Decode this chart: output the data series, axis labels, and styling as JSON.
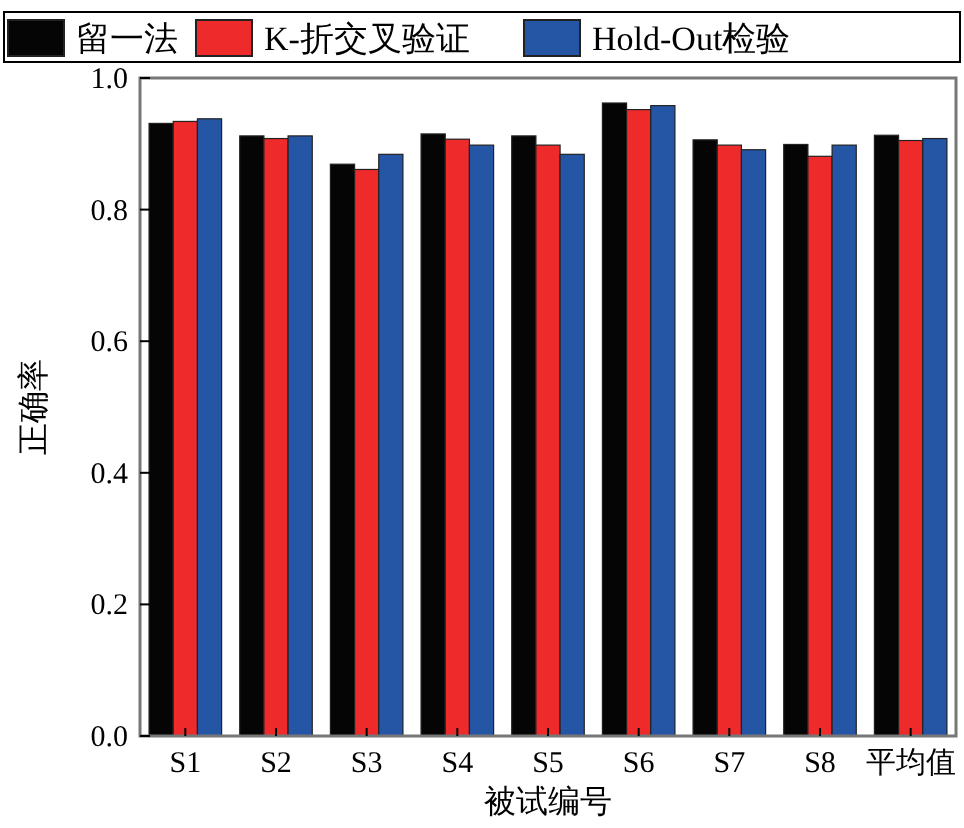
{
  "chart_data": {
    "type": "bar",
    "xlabel": "被试编号",
    "ylabel": "正确率",
    "categories": [
      "S1",
      "S2",
      "S3",
      "S4",
      "S5",
      "S6",
      "S7",
      "S8",
      "平均值"
    ],
    "series": [
      {
        "name": "留一法",
        "color": "#050505",
        "values": [
          0.931,
          0.912,
          0.869,
          0.915,
          0.912,
          0.962,
          0.906,
          0.899,
          0.913
        ]
      },
      {
        "name": "K-折交叉验证",
        "color": "#ee2a2a",
        "values": [
          0.934,
          0.908,
          0.861,
          0.907,
          0.898,
          0.952,
          0.898,
          0.881,
          0.905
        ]
      },
      {
        "name": "Hold-Out检验",
        "color": "#2555a5",
        "values": [
          0.938,
          0.912,
          0.884,
          0.898,
          0.884,
          0.958,
          0.891,
          0.898,
          0.908
        ]
      }
    ],
    "ylim": [
      0,
      1
    ],
    "yticks": [
      {
        "value": 0,
        "label": "0.0"
      },
      {
        "value": 0.2,
        "label": "0.2"
      },
      {
        "value": 0.4,
        "label": "0.4"
      },
      {
        "value": 0.6,
        "label": "0.6"
      },
      {
        "value": 0.8,
        "label": "0.8"
      },
      {
        "value": 1,
        "label": "1.0"
      }
    ],
    "legend": "top",
    "grid": false
  }
}
